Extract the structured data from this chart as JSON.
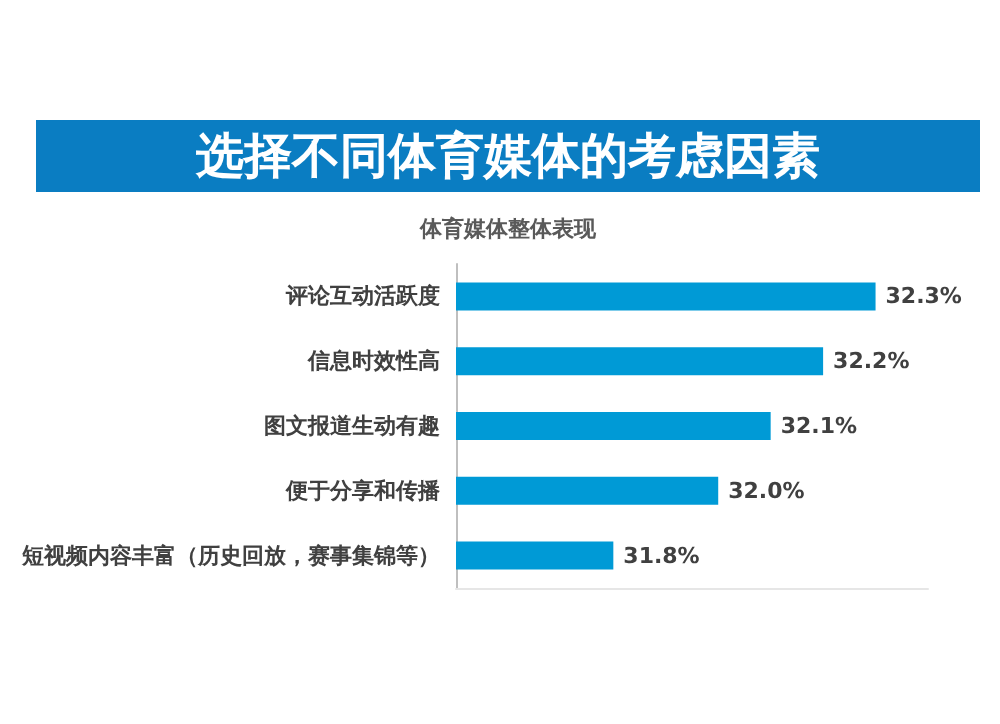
{
  "chart_data": {
    "type": "bar",
    "orientation": "horizontal",
    "title": "选择不同体育媒体的考虑因素",
    "subtitle": "体育媒体整体表现",
    "categories": [
      "评论互动活跃度",
      "信息时效性高",
      "图文报道生动有趣",
      "便于分享和传播",
      "短视频内容丰富（历史回放，赛事集锦等）"
    ],
    "values": [
      32.3,
      32.2,
      32.1,
      32.0,
      31.8
    ],
    "color": "#009ad6",
    "xlim": [
      31.5,
      32.4
    ],
    "tick_labels": "y",
    "grid": false,
    "value_labels": [
      "32.3%",
      "32.2%",
      "32.1%",
      "32.0%",
      "31.8%"
    ]
  }
}
